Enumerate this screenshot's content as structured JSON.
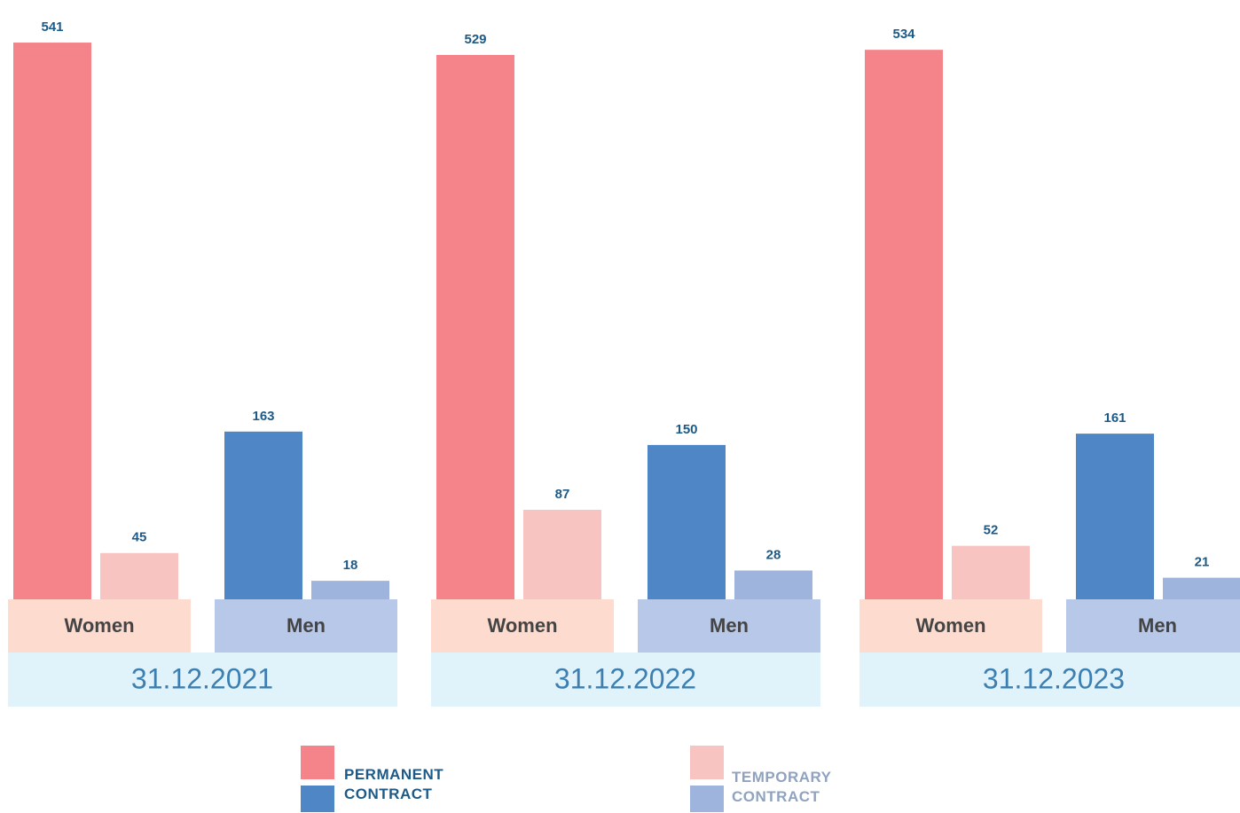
{
  "chart_data": {
    "type": "bar",
    "categories": [
      "31.12.2021",
      "31.12.2022",
      "31.12.2023"
    ],
    "genders": [
      "Women",
      "Men"
    ],
    "gender_colors": [
      "#fddbcf",
      "#b8c8e8"
    ],
    "date_color": "#e1f3fa",
    "contracts": [
      {
        "name": "PERMANENT CONTRACT",
        "colors": [
          "#f4848a",
          "#4f86c6"
        ],
        "text_color": "#1d5a87"
      },
      {
        "name": "TEMPORARY CONTRACT",
        "colors": [
          "#f8c4c2",
          "#9eb4dd"
        ],
        "text_color": "#8fa3c0"
      }
    ],
    "values": [
      [
        [
          541,
          45
        ],
        [
          163,
          18
        ]
      ],
      [
        [
          529,
          87
        ],
        [
          150,
          28
        ]
      ],
      [
        [
          534,
          52
        ],
        [
          161,
          21
        ]
      ]
    ],
    "ylim": [
      0,
      560
    ]
  }
}
